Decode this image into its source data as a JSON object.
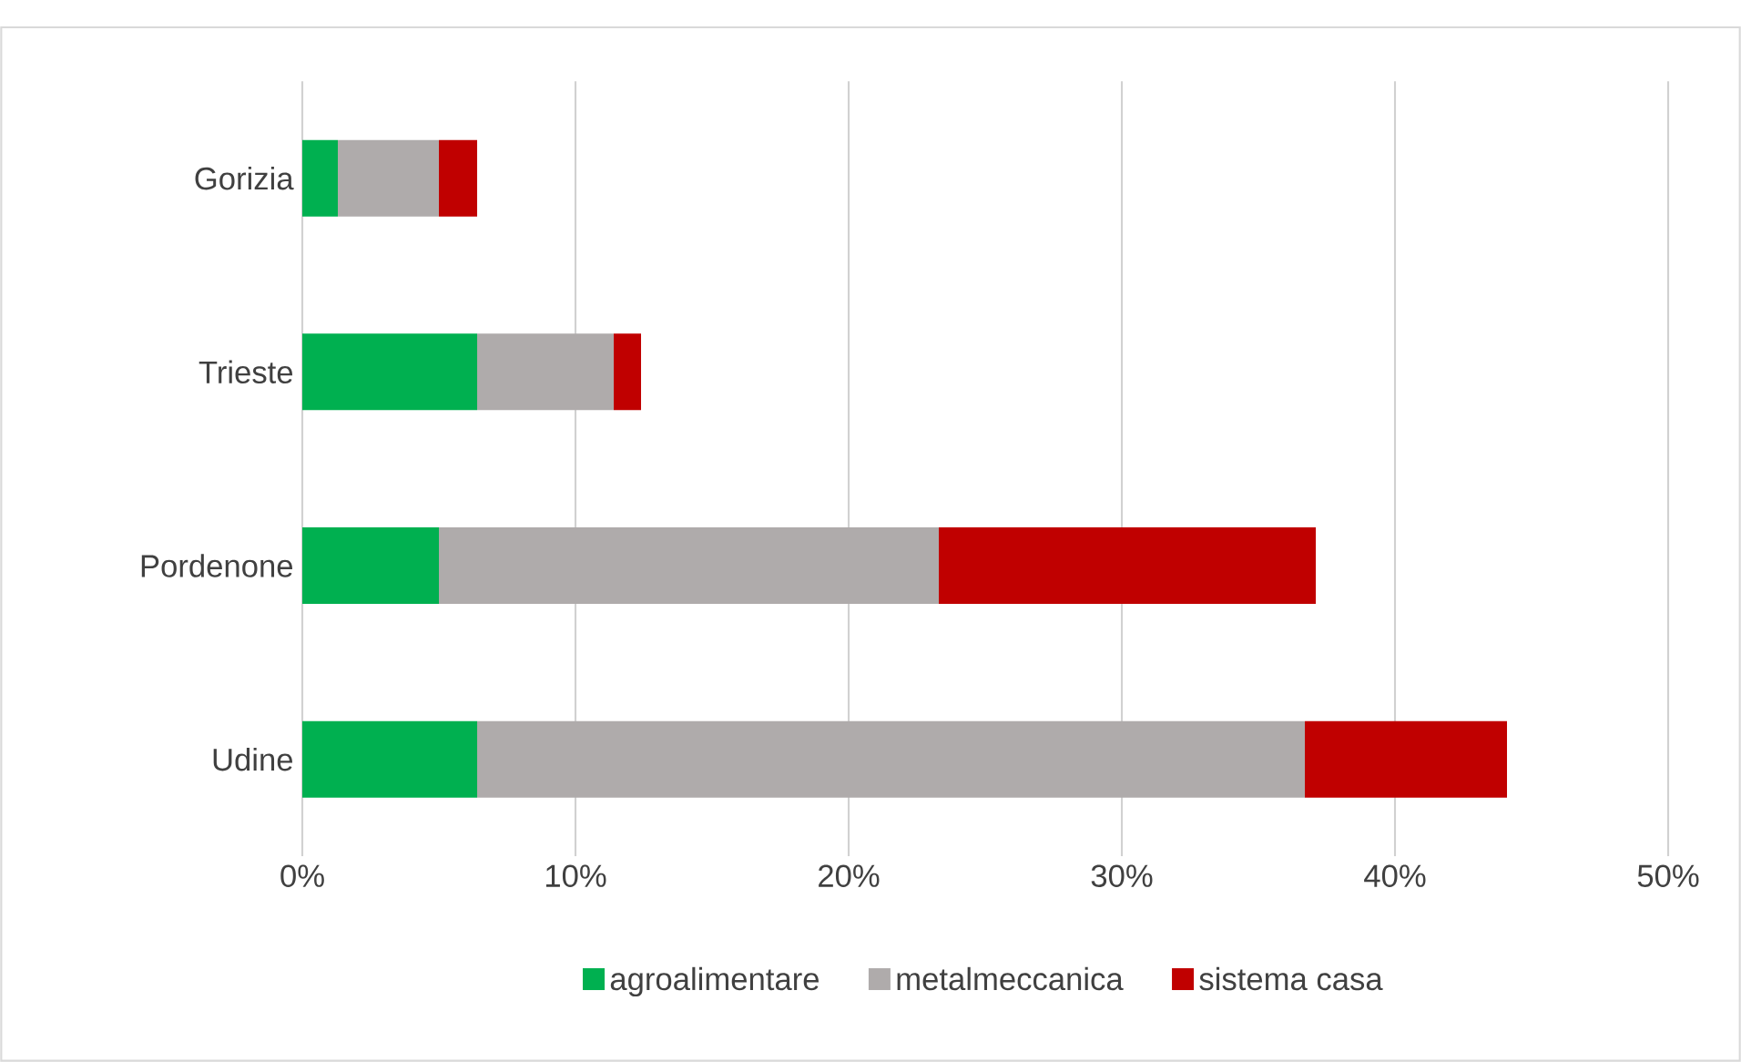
{
  "chart_data": {
    "type": "bar",
    "orientation": "horizontal",
    "stacked": true,
    "categories": [
      "Gorizia",
      "Trieste",
      "Pordenone",
      "Udine"
    ],
    "series": [
      {
        "name": "agroalimentare",
        "color": "#00b050",
        "values": [
          1.3,
          6.4,
          5.0,
          6.4
        ]
      },
      {
        "name": "metalmeccanica",
        "color": "#afabab",
        "values": [
          3.7,
          5.0,
          18.3,
          30.3
        ]
      },
      {
        "name": "sistema casa",
        "color": "#c00000",
        "values": [
          1.4,
          1.0,
          13.8,
          7.4
        ]
      }
    ],
    "xlim": [
      0,
      50
    ],
    "xticks": [
      {
        "value": 0,
        "label": "0%"
      },
      {
        "value": 10,
        "label": "10%"
      },
      {
        "value": 20,
        "label": "20%"
      },
      {
        "value": 30,
        "label": "30%"
      },
      {
        "value": 40,
        "label": "40%"
      },
      {
        "value": 50,
        "label": "50%"
      }
    ],
    "grid": "x",
    "legend": "bottom"
  }
}
